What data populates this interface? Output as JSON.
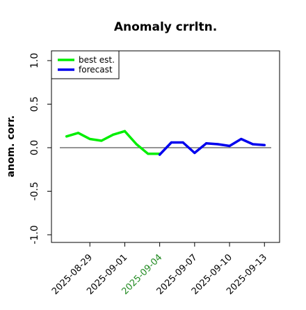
{
  "chart_data": {
    "type": "line",
    "title": "Anomaly crrltn.",
    "xlabel": "",
    "ylabel": "anom. corr.",
    "ylim": [
      -1.0,
      1.0
    ],
    "xlim": [
      "2025-08-26",
      "2025-09-14"
    ],
    "grid": false,
    "legend_position": "top-left",
    "x_ticks": [
      "2025-08-29",
      "2025-09-01",
      "2025-09-04",
      "2025-09-07",
      "2025-09-10",
      "2025-09-13"
    ],
    "highlighted_tick": "2025-09-04",
    "y_ticks": [
      "-1.0",
      "-0.5",
      "0.0",
      "0.5",
      "1.0"
    ],
    "reference_line": 0.0,
    "series": [
      {
        "name": "best est.",
        "color": "#00ee00",
        "x": [
          "2025-08-27",
          "2025-08-28",
          "2025-08-29",
          "2025-08-30",
          "2025-08-31",
          "2025-09-01",
          "2025-09-02",
          "2025-09-03",
          "2025-09-04"
        ],
        "values": [
          0.13,
          0.17,
          0.1,
          0.08,
          0.15,
          0.19,
          0.04,
          -0.07,
          -0.07
        ]
      },
      {
        "name": "forecast",
        "color": "#0000ee",
        "x": [
          "2025-09-04",
          "2025-09-05",
          "2025-09-06",
          "2025-09-07",
          "2025-09-08",
          "2025-09-09",
          "2025-09-10",
          "2025-09-11",
          "2025-09-12",
          "2025-09-13"
        ],
        "values": [
          -0.08,
          0.06,
          0.06,
          -0.06,
          0.05,
          0.04,
          0.02,
          0.1,
          0.04,
          0.03
        ]
      }
    ]
  },
  "colors": {
    "axis": "#000000",
    "reference_line": "#555555",
    "highlight_tick": "#228b22"
  }
}
